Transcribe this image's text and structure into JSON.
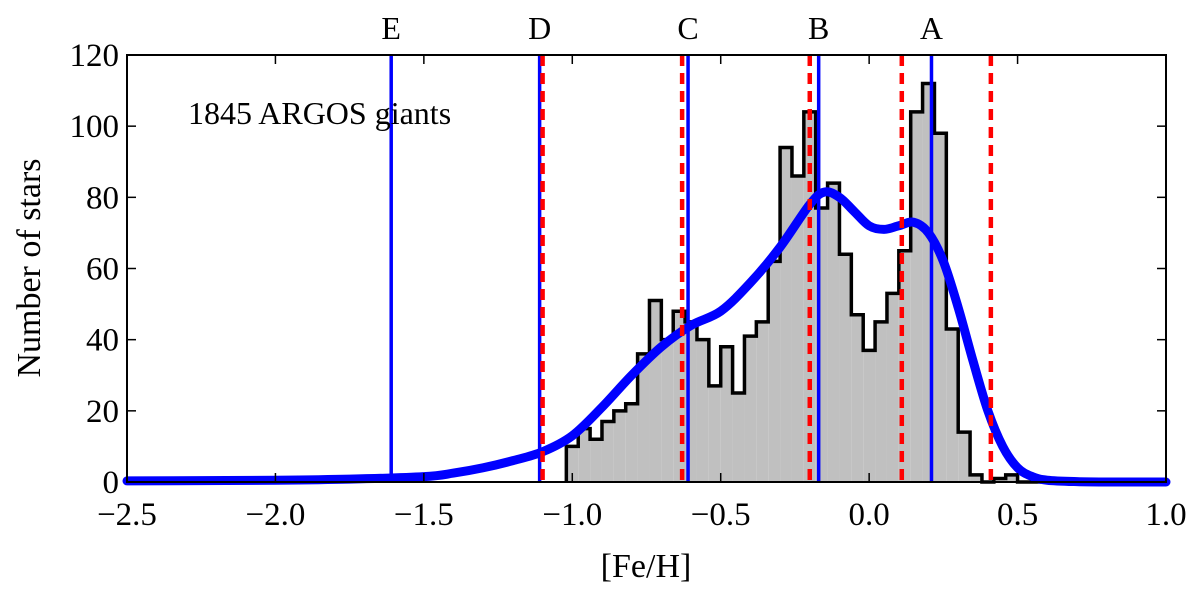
{
  "chart_data": {
    "type": "histogram",
    "title": "",
    "annotation": "1845 ARGOS giants",
    "xlabel": "[Fe/H]",
    "ylabel": "Number of stars",
    "xlim": [
      -2.5,
      1.0
    ],
    "ylim": [
      0,
      120
    ],
    "xticks": [
      -2.5,
      -2.0,
      -1.5,
      -1.0,
      -0.5,
      0.0,
      0.5,
      1.0
    ],
    "xtick_labels": [
      "−2.5",
      "−2.0",
      "−1.5",
      "−1.0",
      "−0.5",
      "0.0",
      "0.5",
      "1.0"
    ],
    "yticks": [
      0,
      20,
      40,
      60,
      80,
      100,
      120
    ],
    "ytick_labels": [
      "0",
      "20",
      "40",
      "60",
      "80",
      "100",
      "120"
    ],
    "colors": {
      "histogram_fill": "#c0c0c0",
      "histogram_edge": "#000000",
      "kde": "#0000ff",
      "component_means": "#0000ff",
      "boundaries": "#ff0000"
    },
    "histogram": {
      "bin_edges": [
        -1.02,
        -0.98,
        -0.94,
        -0.9,
        -0.86,
        -0.82,
        -0.78,
        -0.74,
        -0.7,
        -0.66,
        -0.62,
        -0.58,
        -0.54,
        -0.5,
        -0.46,
        -0.42,
        -0.38,
        -0.34,
        -0.3,
        -0.26,
        -0.22,
        -0.18,
        -0.14,
        -0.1,
        -0.06,
        -0.02,
        0.02,
        0.06,
        0.1,
        0.14,
        0.18,
        0.22,
        0.26,
        0.3,
        0.34,
        0.38,
        0.42,
        0.46,
        0.5,
        0.54,
        0.58
      ],
      "counts": [
        10,
        15,
        12,
        17,
        20,
        22,
        36,
        51,
        40,
        48,
        45,
        40,
        27,
        38,
        25,
        41,
        45,
        62,
        94,
        86,
        104,
        77,
        84,
        64,
        47,
        37,
        45,
        53,
        65,
        104,
        112,
        98,
        43,
        14,
        2,
        0,
        1,
        2,
        0,
        0
      ]
    },
    "kde": {
      "x": [
        -2.5,
        -2.25,
        -2.0,
        -1.75,
        -1.5,
        -1.4,
        -1.3,
        -1.2,
        -1.1,
        -1.0,
        -0.9,
        -0.8,
        -0.7,
        -0.6,
        -0.5,
        -0.4,
        -0.3,
        -0.2,
        -0.15,
        -0.1,
        -0.05,
        0.0,
        0.05,
        0.1,
        0.15,
        0.2,
        0.25,
        0.3,
        0.35,
        0.4,
        0.45,
        0.5,
        0.55,
        0.6,
        0.7,
        0.8,
        1.0
      ],
      "y": [
        0.3,
        0.4,
        0.5,
        0.8,
        1.5,
        2.5,
        4.0,
        6.0,
        8.5,
        13,
        21,
        30,
        38,
        44,
        48,
        56,
        66,
        78,
        81.5,
        80,
        76,
        72,
        71,
        72,
        73,
        70,
        62,
        49,
        34,
        20,
        10,
        4,
        1.5,
        0.5,
        0.1,
        0.0,
        0.0
      ]
    },
    "component_means": [
      {
        "label": "A",
        "x": 0.21
      },
      {
        "label": "B",
        "x": -0.17
      },
      {
        "label": "C",
        "x": -0.61
      },
      {
        "label": "D",
        "x": -1.11
      },
      {
        "label": "E",
        "x": -1.61
      }
    ],
    "boundaries": [
      0.41,
      0.11,
      -0.2,
      -0.63,
      -1.1
    ]
  }
}
